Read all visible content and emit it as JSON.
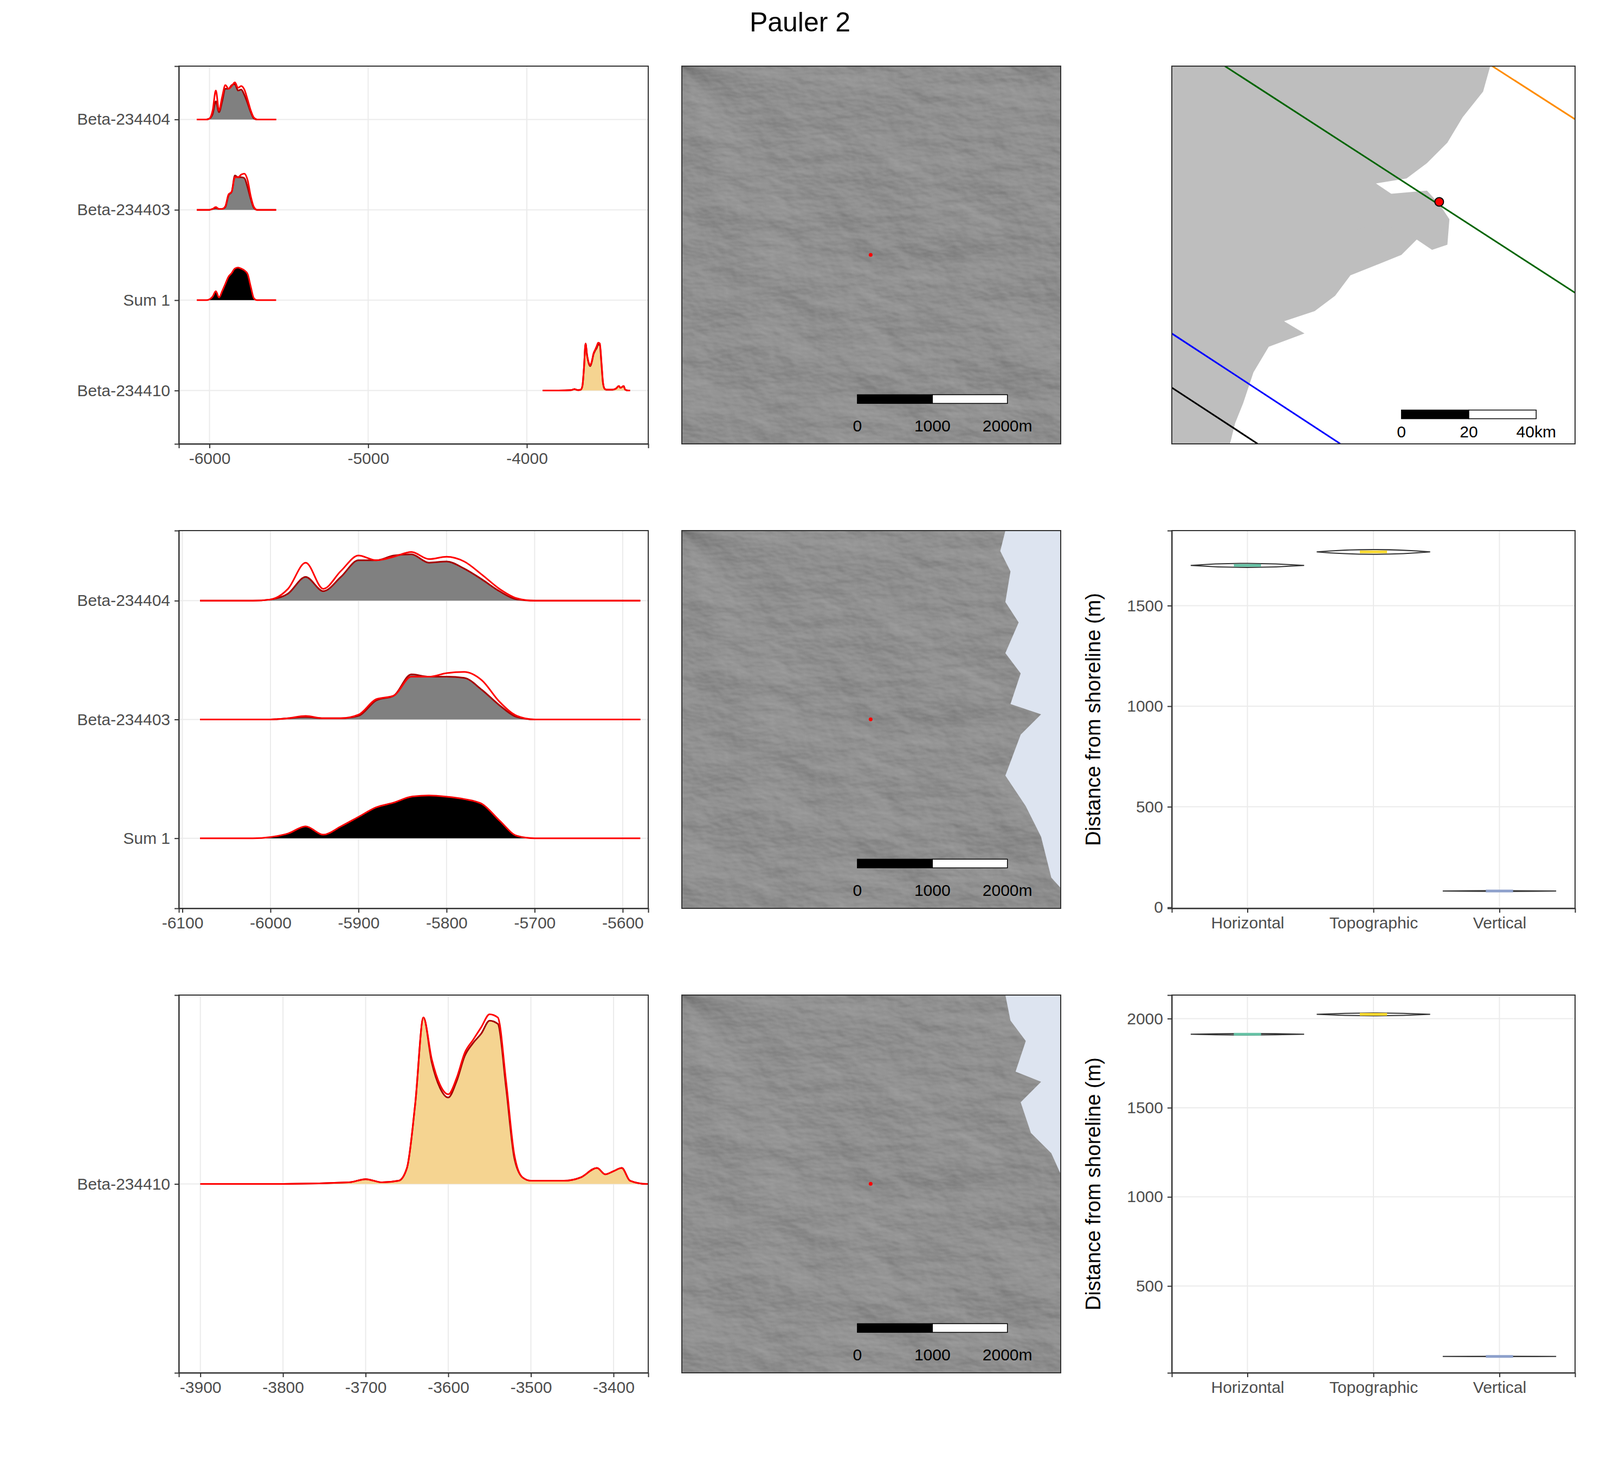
{
  "title": "Pauler 2",
  "chart_data": [
    {
      "type": "density_ridges",
      "xlim": [
        -6193,
        -3235
      ],
      "xticks": [
        -6000,
        -5000,
        -4000
      ],
      "grid": true,
      "series": [
        {
          "name": "Beta-234404",
          "color": "#808080",
          "x": [
            -6080,
            -6060,
            -6040,
            -6020,
            -6000,
            -5980,
            -5960,
            -5940,
            -5920,
            -5900,
            -5880,
            -5860,
            -5840,
            -5820,
            -5800,
            -5780,
            -5760,
            -5740,
            -5720,
            -5700,
            -5680,
            -5660,
            -5640,
            -5620,
            -5600,
            -5580
          ],
          "values": [
            0,
            0,
            0,
            0,
            0.01,
            0.06,
            0.2,
            0.08,
            0.2,
            0.34,
            0.34,
            0.38,
            0.39,
            0.32,
            0.33,
            0.27,
            0.18,
            0.08,
            0.01,
            0,
            0,
            0,
            0,
            0,
            0,
            0
          ],
          "prior": [
            0,
            0,
            0,
            0,
            0.01,
            0.1,
            0.32,
            0.1,
            0.25,
            0.38,
            0.34,
            0.37,
            0.41,
            0.35,
            0.37,
            0.33,
            0.22,
            0.1,
            0.02,
            0,
            0,
            0,
            0,
            0,
            0,
            0
          ]
        },
        {
          "name": "Beta-234403",
          "color": "#808080",
          "x": [
            -6080,
            -6060,
            -6040,
            -6020,
            -6000,
            -5980,
            -5960,
            -5940,
            -5920,
            -5900,
            -5880,
            -5860,
            -5840,
            -5820,
            -5800,
            -5780,
            -5760,
            -5740,
            -5720,
            -5700,
            -5680,
            -5660,
            -5640,
            -5620,
            -5600,
            -5580
          ],
          "values": [
            0,
            0,
            0,
            0,
            0,
            0.01,
            0.02,
            0.01,
            0.01,
            0.03,
            0.16,
            0.2,
            0.38,
            0.36,
            0.36,
            0.35,
            0.25,
            0.12,
            0.02,
            0,
            0,
            0,
            0,
            0,
            0,
            0
          ],
          "prior": [
            0,
            0,
            0,
            0,
            0,
            0.01,
            0.03,
            0.01,
            0.01,
            0.04,
            0.17,
            0.2,
            0.36,
            0.36,
            0.39,
            0.4,
            0.33,
            0.15,
            0.03,
            0,
            0,
            0,
            0,
            0,
            0,
            0
          ]
        },
        {
          "name": "Sum 1",
          "color": "#000000",
          "x": [
            -6080,
            -6060,
            -6040,
            -6020,
            -6000,
            -5980,
            -5960,
            -5940,
            -5920,
            -5900,
            -5880,
            -5860,
            -5840,
            -5820,
            -5800,
            -5780,
            -5760,
            -5740,
            -5720,
            -5700,
            -5680,
            -5660,
            -5640,
            -5620,
            -5600,
            -5580
          ],
          "values": [
            0,
            0,
            0,
            0,
            0.01,
            0.04,
            0.1,
            0.03,
            0.1,
            0.18,
            0.26,
            0.3,
            0.35,
            0.36,
            0.35,
            0.33,
            0.29,
            0.15,
            0.02,
            0,
            0,
            0,
            0,
            0,
            0,
            0
          ]
        },
        {
          "name": "Beta-234410",
          "color": "#f5d491",
          "x": [
            -3900,
            -3800,
            -3720,
            -3700,
            -3680,
            -3660,
            -3650,
            -3640,
            -3630,
            -3620,
            -3610,
            -3600,
            -3590,
            -3580,
            -3570,
            -3560,
            -3550,
            -3540,
            -3530,
            -3520,
            -3510,
            -3500,
            -3460,
            -3440,
            -3420,
            -3410,
            -3400,
            -3390,
            -3380,
            -3360,
            -3350
          ],
          "values": [
            0,
            0,
            0.005,
            0.015,
            0.005,
            0.01,
            0.05,
            0.25,
            0.52,
            0.38,
            0.3,
            0.27,
            0.32,
            0.4,
            0.44,
            0.47,
            0.51,
            0.5,
            0.3,
            0.08,
            0.02,
            0.01,
            0.01,
            0.02,
            0.05,
            0.03,
            0.04,
            0.05,
            0.01,
            0,
            0
          ],
          "prior": [
            0,
            0,
            0.005,
            0.015,
            0.005,
            0.01,
            0.05,
            0.25,
            0.52,
            0.39,
            0.31,
            0.28,
            0.33,
            0.41,
            0.45,
            0.49,
            0.53,
            0.52,
            0.32,
            0.09,
            0.02,
            0.01,
            0.01,
            0.02,
            0.05,
            0.03,
            0.04,
            0.05,
            0.01,
            0,
            0
          ]
        }
      ]
    },
    {
      "type": "density_ridges",
      "xlim": [
        -6104,
        -5571
      ],
      "xticks": [
        -6100,
        -6000,
        -5900,
        -5800,
        -5700,
        -5600
      ],
      "grid": true,
      "series": [
        {
          "name": "Beta-234404",
          "color": "#808080",
          "x": [
            -6080,
            -6060,
            -6040,
            -6020,
            -6000,
            -5980,
            -5960,
            -5940,
            -5920,
            -5900,
            -5880,
            -5860,
            -5840,
            -5820,
            -5800,
            -5780,
            -5760,
            -5740,
            -5720,
            -5700,
            -5680,
            -5660,
            -5640,
            -5620,
            -5600,
            -5580
          ],
          "values": [
            0,
            0,
            0,
            0,
            0.01,
            0.06,
            0.2,
            0.08,
            0.2,
            0.34,
            0.34,
            0.38,
            0.39,
            0.32,
            0.33,
            0.27,
            0.18,
            0.08,
            0.01,
            0,
            0,
            0,
            0,
            0,
            0,
            0
          ],
          "prior": [
            0,
            0,
            0,
            0,
            0.01,
            0.1,
            0.32,
            0.1,
            0.25,
            0.38,
            0.34,
            0.37,
            0.41,
            0.35,
            0.37,
            0.33,
            0.22,
            0.1,
            0.02,
            0,
            0,
            0,
            0,
            0,
            0,
            0
          ]
        },
        {
          "name": "Beta-234403",
          "color": "#808080",
          "x": [
            -6080,
            -6060,
            -6040,
            -6020,
            -6000,
            -5980,
            -5960,
            -5940,
            -5920,
            -5900,
            -5880,
            -5860,
            -5840,
            -5820,
            -5800,
            -5780,
            -5760,
            -5740,
            -5720,
            -5700,
            -5680,
            -5660,
            -5640,
            -5620,
            -5600,
            -5580
          ],
          "values": [
            0,
            0,
            0,
            0,
            0,
            0.01,
            0.02,
            0.01,
            0.01,
            0.03,
            0.16,
            0.2,
            0.38,
            0.36,
            0.36,
            0.35,
            0.25,
            0.12,
            0.02,
            0,
            0,
            0,
            0,
            0,
            0,
            0
          ],
          "prior": [
            0,
            0,
            0,
            0,
            0,
            0.01,
            0.03,
            0.01,
            0.01,
            0.04,
            0.17,
            0.2,
            0.36,
            0.36,
            0.39,
            0.4,
            0.33,
            0.15,
            0.03,
            0,
            0,
            0,
            0,
            0,
            0,
            0
          ]
        },
        {
          "name": "Sum 1",
          "color": "#000000",
          "x": [
            -6080,
            -6060,
            -6040,
            -6020,
            -6000,
            -5980,
            -5960,
            -5940,
            -5920,
            -5900,
            -5880,
            -5860,
            -5840,
            -5820,
            -5800,
            -5780,
            -5760,
            -5740,
            -5720,
            -5700,
            -5680,
            -5660,
            -5640,
            -5620,
            -5600,
            -5580
          ],
          "values": [
            0,
            0,
            0,
            0,
            0.01,
            0.04,
            0.1,
            0.03,
            0.1,
            0.18,
            0.26,
            0.3,
            0.35,
            0.36,
            0.35,
            0.33,
            0.29,
            0.15,
            0.02,
            0,
            0,
            0,
            0,
            0,
            0,
            0
          ]
        }
      ]
    },
    {
      "type": "violin",
      "categories": [
        "Horizontal",
        "Topographic",
        "Vertical"
      ],
      "ylabel": "Distance from shoreline (m)",
      "min": [
        1690,
        1755,
        79
      ],
      "median": [
        1700,
        1767,
        81
      ],
      "max": [
        1710,
        1779,
        83
      ],
      "colors": [
        "#66c2a5",
        "#ffd92f",
        "#8da0cb"
      ],
      "ylim": [
        -5,
        1873
      ],
      "yticks": [
        0,
        500,
        1000,
        1500
      ],
      "grid": true
    },
    {
      "type": "density_ridges",
      "xlim": [
        -3926,
        -3358
      ],
      "xticks": [
        -3900,
        -3800,
        -3700,
        -3600,
        -3500,
        -3400
      ],
      "grid": true,
      "series": [
        {
          "name": "Beta-234410",
          "color": "#f5d491",
          "x": [
            -3900,
            -3800,
            -3720,
            -3700,
            -3680,
            -3660,
            -3650,
            -3640,
            -3630,
            -3620,
            -3610,
            -3600,
            -3590,
            -3580,
            -3570,
            -3560,
            -3550,
            -3540,
            -3530,
            -3520,
            -3510,
            -3500,
            -3460,
            -3440,
            -3420,
            -3410,
            -3400,
            -3390,
            -3380,
            -3360,
            -3350
          ],
          "values": [
            0,
            0,
            0.005,
            0.015,
            0.005,
            0.01,
            0.05,
            0.25,
            0.52,
            0.38,
            0.3,
            0.27,
            0.32,
            0.4,
            0.44,
            0.47,
            0.51,
            0.5,
            0.3,
            0.08,
            0.02,
            0.01,
            0.01,
            0.02,
            0.05,
            0.03,
            0.04,
            0.05,
            0.01,
            0,
            0
          ],
          "prior": [
            0,
            0,
            0.005,
            0.015,
            0.005,
            0.01,
            0.05,
            0.25,
            0.52,
            0.39,
            0.31,
            0.28,
            0.33,
            0.41,
            0.45,
            0.49,
            0.53,
            0.52,
            0.32,
            0.09,
            0.02,
            0.01,
            0.01,
            0.02,
            0.05,
            0.03,
            0.04,
            0.05,
            0.01,
            0,
            0
          ]
        }
      ]
    },
    {
      "type": "violin",
      "categories": [
        "Horizontal",
        "Topographic",
        "Vertical"
      ],
      "ylabel": "Distance from shoreline (m)",
      "min": [
        1908,
        2016,
        104
      ],
      "median": [
        1912,
        2024,
        105
      ],
      "max": [
        1916,
        2032,
        106
      ],
      "colors": [
        "#66c2a5",
        "#ffd92f",
        "#8da0cb"
      ],
      "ylim": [
        13,
        2132
      ],
      "yticks": [
        500,
        1000,
        1500,
        2000
      ],
      "grid": true
    }
  ],
  "maps": [
    {
      "type": "hillshade",
      "scalebar": [
        "0",
        "1000",
        "2000m"
      ]
    },
    {
      "type": "overview",
      "scalebar": [
        "0",
        "20",
        "40km"
      ]
    },
    {
      "type": "hillshade",
      "scalebar": [
        "0",
        "1000",
        "2000m"
      ]
    },
    {
      "type": "hillshade",
      "scalebar": [
        "0",
        "1000",
        "2000m"
      ]
    }
  ]
}
